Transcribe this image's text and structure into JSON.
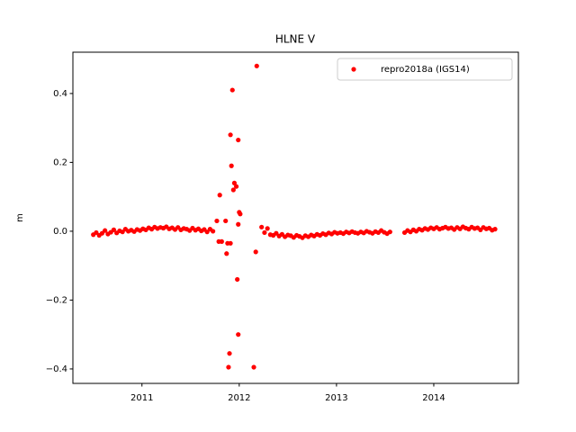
{
  "chart_data": {
    "type": "scatter",
    "title": "HLNE V",
    "y_label": "m",
    "xlim": [
      2010.29,
      2014.87
    ],
    "ylim": [
      -0.442,
      0.52
    ],
    "xticks": [
      2011,
      2012,
      2013,
      2014
    ],
    "yticks": [
      {
        "value": -0.4,
        "label": "−0.4"
      },
      {
        "value": -0.2,
        "label": "−0.2"
      },
      {
        "value": 0.0,
        "label": "0.0"
      },
      {
        "value": 0.2,
        "label": "0.2"
      },
      {
        "value": 0.4,
        "label": "0.4"
      }
    ],
    "legend": "upper right",
    "series": [
      {
        "name": "repro2018a (IGS14)",
        "color": "#ff0000",
        "x": [
          2010.5,
          2010.53,
          2010.56,
          2010.59,
          2010.62,
          2010.65,
          2010.68,
          2010.71,
          2010.74,
          2010.77,
          2010.8,
          2010.83,
          2010.86,
          2010.89,
          2010.92,
          2010.95,
          2010.98,
          2011.01,
          2011.04,
          2011.07,
          2011.1,
          2011.13,
          2011.16,
          2011.19,
          2011.22,
          2011.25,
          2011.28,
          2011.31,
          2011.34,
          2011.37,
          2011.4,
          2011.43,
          2011.46,
          2011.49,
          2011.52,
          2011.55,
          2011.58,
          2011.61,
          2011.64,
          2011.67,
          2011.7,
          2011.73,
          2012.23,
          2012.26,
          2012.29,
          2012.32,
          2012.35,
          2012.38,
          2012.41,
          2012.44,
          2012.47,
          2012.5,
          2012.53,
          2012.56,
          2012.59,
          2012.62,
          2012.65,
          2012.68,
          2012.71,
          2012.74,
          2012.77,
          2012.8,
          2012.83,
          2012.86,
          2012.89,
          2012.92,
          2012.95,
          2012.98,
          2013.01,
          2013.04,
          2013.07,
          2013.1,
          2013.13,
          2013.16,
          2013.19,
          2013.22,
          2013.25,
          2013.28,
          2013.31,
          2013.34,
          2013.37,
          2013.4,
          2013.43,
          2013.46,
          2013.49,
          2013.52,
          2013.55,
          2013.7,
          2013.73,
          2013.76,
          2013.79,
          2013.82,
          2013.85,
          2013.88,
          2013.91,
          2013.94,
          2013.97,
          2014.0,
          2014.03,
          2014.06,
          2014.09,
          2014.12,
          2014.15,
          2014.18,
          2014.21,
          2014.24,
          2014.27,
          2014.3,
          2014.33,
          2014.36,
          2014.39,
          2014.42,
          2014.45,
          2014.48,
          2014.51,
          2014.54,
          2014.57,
          2014.6,
          2014.63,
          2012.18,
          2011.93,
          2011.91,
          2011.99,
          2011.92,
          2011.95,
          2011.97,
          2011.94,
          2011.8,
          2012.0,
          2012.01,
          2011.86,
          2011.99,
          2011.88,
          2011.91,
          2011.87,
          2012.17,
          2011.98,
          2011.99,
          2011.9,
          2011.89,
          2012.15,
          2011.82,
          2011.79,
          2011.77
        ],
        "values": [
          -0.01,
          -0.004,
          -0.012,
          -0.006,
          0.002,
          -0.008,
          -0.003,
          0.004,
          -0.005,
          0.001,
          -0.002,
          0.006,
          0.0,
          0.003,
          -0.001,
          0.005,
          0.002,
          0.007,
          0.004,
          0.01,
          0.006,
          0.012,
          0.008,
          0.011,
          0.009,
          0.013,
          0.007,
          0.01,
          0.005,
          0.011,
          0.004,
          0.008,
          0.006,
          0.002,
          0.009,
          0.003,
          0.007,
          0.001,
          0.005,
          -0.002,
          0.006,
          0.0,
          0.012,
          -0.004,
          0.008,
          -0.01,
          -0.012,
          -0.006,
          -0.014,
          -0.009,
          -0.016,
          -0.011,
          -0.013,
          -0.018,
          -0.012,
          -0.015,
          -0.019,
          -0.013,
          -0.016,
          -0.011,
          -0.014,
          -0.009,
          -0.012,
          -0.007,
          -0.01,
          -0.005,
          -0.008,
          -0.003,
          -0.006,
          -0.004,
          -0.007,
          -0.002,
          -0.005,
          -0.001,
          -0.004,
          -0.006,
          -0.002,
          -0.005,
          0.0,
          -0.003,
          -0.006,
          -0.001,
          -0.004,
          0.002,
          -0.003,
          -0.007,
          -0.002,
          -0.004,
          0.002,
          -0.002,
          0.004,
          0.0,
          0.006,
          0.003,
          0.008,
          0.005,
          0.01,
          0.007,
          0.011,
          0.006,
          0.009,
          0.012,
          0.008,
          0.01,
          0.005,
          0.011,
          0.007,
          0.013,
          0.009,
          0.006,
          0.012,
          0.008,
          0.01,
          0.004,
          0.011,
          0.007,
          0.009,
          0.003,
          0.006,
          0.48,
          0.41,
          0.28,
          0.265,
          0.19,
          0.14,
          0.13,
          0.12,
          0.105,
          0.055,
          0.05,
          0.03,
          0.02,
          -0.035,
          -0.035,
          -0.065,
          -0.06,
          -0.14,
          -0.3,
          -0.355,
          -0.395,
          -0.395,
          -0.03,
          -0.03,
          0.03
        ]
      }
    ]
  }
}
